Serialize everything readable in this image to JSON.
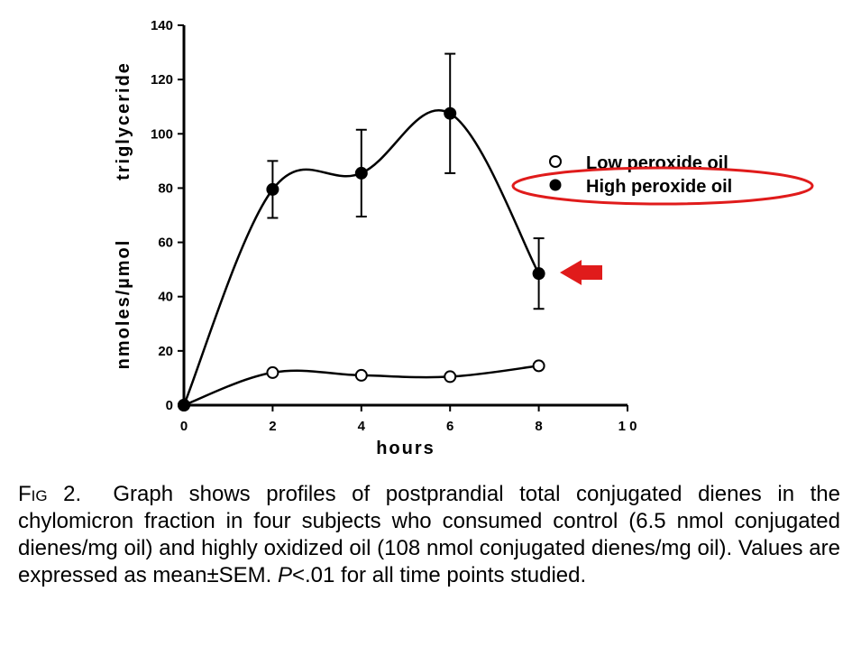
{
  "chart_data": {
    "type": "line",
    "title": "",
    "xlabel": "hours",
    "ylabel_parts": [
      "nmoles/µmol",
      "triglyceride"
    ],
    "xlim": [
      0,
      10
    ],
    "ylim": [
      0,
      140
    ],
    "x_ticks": [
      "0",
      "2",
      "4",
      "6",
      "8",
      "1 0"
    ],
    "y_ticks": [
      "0",
      "20",
      "40",
      "60",
      "80",
      "100",
      "120",
      "140"
    ],
    "grid": false,
    "legend_position": "right",
    "series": [
      {
        "name": "Low peroxide oil",
        "marker": "open-circle",
        "x": [
          0,
          2,
          4,
          6,
          8
        ],
        "y": [
          0,
          12,
          11,
          10.5,
          14.5
        ],
        "err": [
          0,
          0,
          0,
          0,
          0
        ]
      },
      {
        "name": "High peroxide oil",
        "marker": "filled-circle",
        "x": [
          0,
          2,
          4,
          6,
          8
        ],
        "y": [
          0,
          79.5,
          85.5,
          107.5,
          48.5
        ],
        "err": [
          0,
          10.5,
          16,
          22,
          13
        ]
      }
    ],
    "annotations": {
      "highlight_ellipse_on": "High peroxide oil",
      "arrow_points_to": {
        "series": "High peroxide oil",
        "x": 8
      },
      "highlight_color": "#e01b1b"
    }
  },
  "caption": {
    "fig_label": "Fig 2.",
    "text_before_p": "Graph shows profiles of postprandial total conjugated dienes in the chylomicron fraction in four subjects who consumed control (6.5 nmol conjugated dienes/mg oil) and highly oxidized oil (108 nmol conjugated dienes/mg oil). Values are expressed as mean±SEM.",
    "p_symbol": "P",
    "text_after_p": "<.01 for all time points studied."
  }
}
